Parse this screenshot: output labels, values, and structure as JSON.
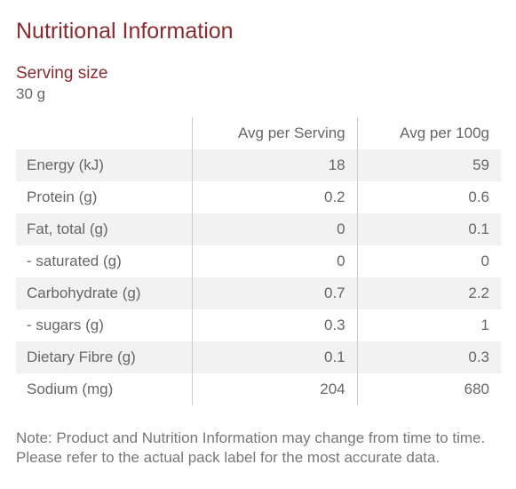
{
  "title": "Nutritional Information",
  "serving": {
    "label": "Serving size",
    "value": "30 g"
  },
  "table": {
    "headers": [
      "",
      "Avg per Serving",
      "Avg per 100g"
    ],
    "rows": [
      {
        "name": "Energy (kJ)",
        "per_serving": "18",
        "per_100g": "59"
      },
      {
        "name": "Protein (g)",
        "per_serving": "0.2",
        "per_100g": "0.6"
      },
      {
        "name": "Fat, total (g)",
        "per_serving": "0",
        "per_100g": "0.1"
      },
      {
        "name": "- saturated (g)",
        "per_serving": "0",
        "per_100g": "0"
      },
      {
        "name": "Carbohydrate (g)",
        "per_serving": "0.7",
        "per_100g": "2.2"
      },
      {
        "name": "- sugars (g)",
        "per_serving": "0.3",
        "per_100g": "1"
      },
      {
        "name": "Dietary Fibre (g)",
        "per_serving": "0.1",
        "per_100g": "0.3"
      },
      {
        "name": "Sodium (mg)",
        "per_serving": "204",
        "per_100g": "680"
      }
    ]
  },
  "note": "Note: Product and Nutrition Information may change from time to time. Please refer to the actual pack label for the most accurate data.",
  "colors": {
    "title": "#8b2a2f",
    "text": "#666666",
    "row_shade": "#f2f2f2",
    "divider": "#cccccc"
  }
}
